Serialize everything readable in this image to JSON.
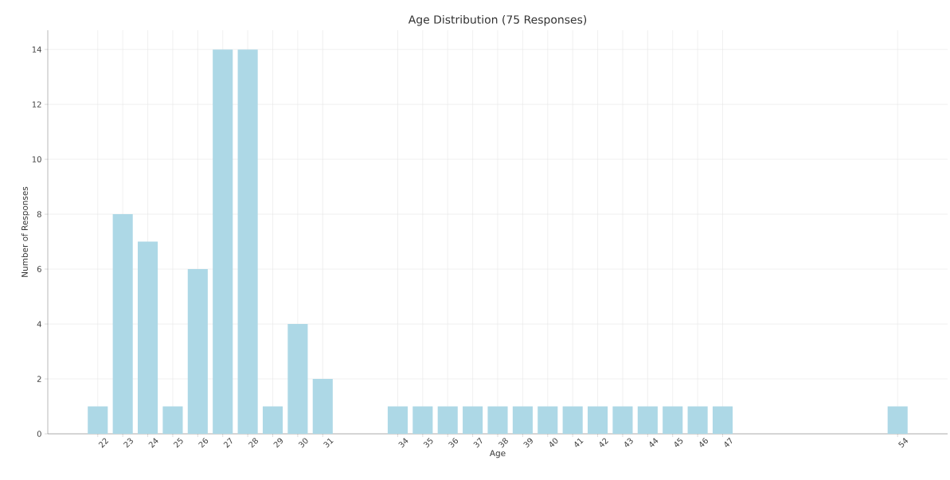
{
  "chart_data": {
    "type": "bar",
    "title": "Age Distribution (75 Responses)",
    "xlabel": "Age",
    "ylabel": "Number of Responses",
    "x": [
      22,
      23,
      24,
      25,
      26,
      27,
      28,
      29,
      30,
      31,
      34,
      35,
      36,
      37,
      38,
      39,
      40,
      41,
      42,
      43,
      44,
      45,
      46,
      47,
      54
    ],
    "values": [
      1,
      8,
      7,
      1,
      6,
      14,
      14,
      1,
      4,
      2,
      1,
      1,
      1,
      1,
      1,
      1,
      1,
      1,
      1,
      1,
      1,
      1,
      1,
      1,
      1
    ],
    "color": "#add8e6",
    "xlim": [
      20,
      56
    ],
    "ylim": [
      0,
      14.7
    ],
    "xticks": [
      22,
      23,
      24,
      25,
      26,
      27,
      28,
      29,
      30,
      31,
      34,
      35,
      36,
      37,
      38,
      39,
      40,
      41,
      42,
      43,
      44,
      45,
      46,
      47,
      54
    ],
    "yticks": [
      0,
      2,
      4,
      6,
      8,
      10,
      12,
      14
    ],
    "grid": true
  }
}
